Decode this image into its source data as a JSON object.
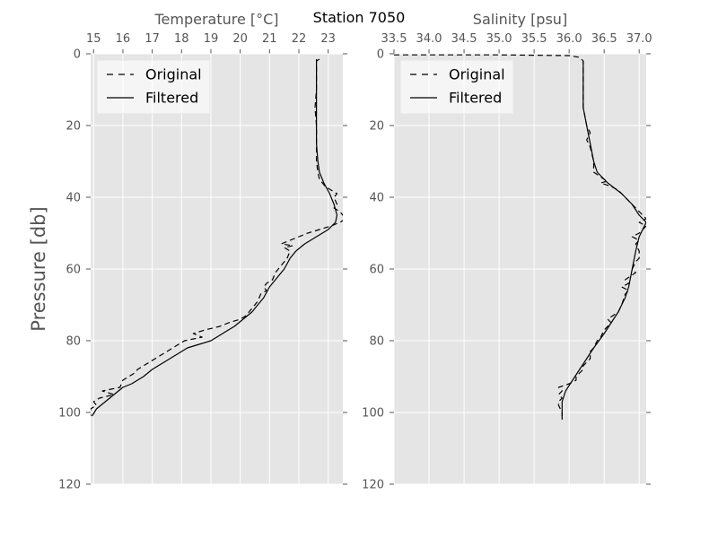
{
  "figure_title": "Station 7050",
  "y_axis_label": "Pressure [db]",
  "chart_data": [
    {
      "type": "line",
      "xlabel": "Temperature [°C]",
      "ylabel": "Pressure [db]",
      "xlim": [
        14.9,
        23.5
      ],
      "ylim": [
        120,
        0
      ],
      "x_ticks": [
        "15",
        "16",
        "17",
        "18",
        "19",
        "20",
        "21",
        "22",
        "23"
      ],
      "y_ticks": [
        "0",
        "20",
        "40",
        "60",
        "80",
        "100",
        "120"
      ],
      "grid": true,
      "legend_placement": "upper-left",
      "series": [
        {
          "name": "Original",
          "style": "dashed",
          "color": "#000000",
          "points": [
            [
              22.7,
              1.5
            ],
            [
              22.6,
              2
            ],
            [
              22.6,
              5
            ],
            [
              22.6,
              10
            ],
            [
              22.55,
              15
            ],
            [
              22.6,
              20
            ],
            [
              22.6,
              25
            ],
            [
              22.6,
              28
            ],
            [
              22.6,
              30
            ],
            [
              22.65,
              33
            ],
            [
              22.7,
              35
            ],
            [
              22.9,
              37
            ],
            [
              23.1,
              38
            ],
            [
              23.3,
              39
            ],
            [
              23.2,
              40
            ],
            [
              23.3,
              42
            ],
            [
              23.2,
              43
            ],
            [
              23.4,
              44
            ],
            [
              23.5,
              45
            ],
            [
              23.6,
              46
            ],
            [
              23.4,
              47
            ],
            [
              23.1,
              48
            ],
            [
              22.7,
              49
            ],
            [
              22.3,
              50
            ],
            [
              22.0,
              51
            ],
            [
              21.7,
              52
            ],
            [
              21.4,
              53
            ],
            [
              21.8,
              53.5
            ],
            [
              21.5,
              54
            ],
            [
              21.7,
              55
            ],
            [
              21.6,
              57
            ],
            [
              21.4,
              59
            ],
            [
              21.2,
              61
            ],
            [
              21.1,
              63
            ],
            [
              20.9,
              64
            ],
            [
              20.8,
              65
            ],
            [
              20.9,
              66
            ],
            [
              20.7,
              67
            ],
            [
              20.6,
              69
            ],
            [
              20.3,
              72
            ],
            [
              20.2,
              73
            ],
            [
              20.0,
              74
            ],
            [
              19.6,
              75
            ],
            [
              19.3,
              76
            ],
            [
              18.8,
              77
            ],
            [
              18.4,
              78
            ],
            [
              18.7,
              79
            ],
            [
              18.1,
              80
            ],
            [
              17.9,
              81
            ],
            [
              17.7,
              82
            ],
            [
              17.5,
              83
            ],
            [
              17.3,
              84
            ],
            [
              17.1,
              85
            ],
            [
              16.9,
              86
            ],
            [
              16.7,
              87
            ],
            [
              16.5,
              88
            ],
            [
              16.4,
              89
            ],
            [
              16.2,
              90
            ],
            [
              16.0,
              91
            ],
            [
              15.9,
              93
            ],
            [
              15.6,
              93.5
            ],
            [
              15.3,
              94
            ],
            [
              15.7,
              95
            ],
            [
              15.2,
              96
            ],
            [
              15.0,
              97
            ],
            [
              15.1,
              98
            ],
            [
              14.9,
              99
            ],
            [
              14.9,
              100
            ],
            [
              14.9,
              101
            ]
          ]
        },
        {
          "name": "Filtered",
          "style": "solid",
          "color": "#000000",
          "points": [
            [
              22.6,
              1.5
            ],
            [
              22.6,
              5
            ],
            [
              22.6,
              10
            ],
            [
              22.6,
              15
            ],
            [
              22.6,
              20
            ],
            [
              22.6,
              25
            ],
            [
              22.65,
              30
            ],
            [
              22.7,
              33
            ],
            [
              22.85,
              36
            ],
            [
              23.05,
              39
            ],
            [
              23.2,
              42
            ],
            [
              23.3,
              45
            ],
            [
              23.25,
              47
            ],
            [
              23.0,
              49
            ],
            [
              22.6,
              51
            ],
            [
              22.2,
              53
            ],
            [
              21.9,
              55
            ],
            [
              21.7,
              57
            ],
            [
              21.5,
              60
            ],
            [
              21.3,
              62
            ],
            [
              21.0,
              65
            ],
            [
              20.8,
              68
            ],
            [
              20.6,
              70
            ],
            [
              20.4,
              72
            ],
            [
              20.1,
              74
            ],
            [
              19.8,
              76
            ],
            [
              19.4,
              78
            ],
            [
              19.0,
              80
            ],
            [
              18.6,
              81
            ],
            [
              18.2,
              82
            ],
            [
              17.8,
              84
            ],
            [
              17.4,
              86
            ],
            [
              17.0,
              88
            ],
            [
              16.7,
              90
            ],
            [
              16.3,
              92
            ],
            [
              16.0,
              93
            ],
            [
              15.7,
              95
            ],
            [
              15.4,
              97
            ],
            [
              15.1,
              99
            ],
            [
              14.95,
              101
            ]
          ]
        }
      ]
    },
    {
      "type": "line",
      "xlabel": "Salinity [psu]",
      "ylabel": "",
      "xlim": [
        33.5,
        37.1
      ],
      "ylim": [
        120,
        0
      ],
      "x_ticks": [
        "33.5",
        "34.0",
        "34.5",
        "35.0",
        "35.5",
        "36.0",
        "36.5",
        "37.0"
      ],
      "y_ticks": [
        "0",
        "20",
        "40",
        "60",
        "80",
        "100",
        "120"
      ],
      "grid": true,
      "legend_placement": "upper-left",
      "series": [
        {
          "name": "Original",
          "style": "dashed",
          "color": "#000000",
          "points": [
            [
              33.5,
              0.3
            ],
            [
              35.0,
              0.3
            ],
            [
              36.0,
              0.5
            ],
            [
              36.15,
              1
            ],
            [
              36.2,
              2
            ],
            [
              36.2,
              5
            ],
            [
              36.2,
              10
            ],
            [
              36.2,
              15
            ],
            [
              36.25,
              20
            ],
            [
              36.3,
              22
            ],
            [
              36.25,
              24
            ],
            [
              36.3,
              26
            ],
            [
              36.35,
              30
            ],
            [
              36.35,
              33
            ],
            [
              36.5,
              35
            ],
            [
              36.55,
              35.5
            ],
            [
              36.45,
              36
            ],
            [
              36.6,
              37
            ],
            [
              36.7,
              38
            ],
            [
              36.75,
              39
            ],
            [
              36.8,
              40
            ],
            [
              36.9,
              42
            ],
            [
              37.0,
              44
            ],
            [
              37.05,
              45
            ],
            [
              37.1,
              46
            ],
            [
              37.0,
              47
            ],
            [
              37.1,
              48
            ],
            [
              37.0,
              50
            ],
            [
              36.9,
              51
            ],
            [
              37.0,
              52
            ],
            [
              36.95,
              53
            ],
            [
              37.0,
              55
            ],
            [
              37.0,
              57
            ],
            [
              36.95,
              58
            ],
            [
              36.9,
              60
            ],
            [
              36.95,
              61
            ],
            [
              36.8,
              63
            ],
            [
              36.85,
              64
            ],
            [
              36.75,
              65
            ],
            [
              36.85,
              66
            ],
            [
              36.8,
              67
            ],
            [
              36.75,
              70
            ],
            [
              36.7,
              72
            ],
            [
              36.55,
              74
            ],
            [
              36.6,
              75
            ],
            [
              36.5,
              77
            ],
            [
              36.45,
              79
            ],
            [
              36.4,
              80
            ],
            [
              36.35,
              82
            ],
            [
              36.3,
              83
            ],
            [
              36.3,
              85
            ],
            [
              36.25,
              86
            ],
            [
              36.2,
              87
            ],
            [
              36.2,
              88
            ],
            [
              36.15,
              89
            ],
            [
              36.1,
              90
            ],
            [
              36.1,
              91
            ],
            [
              36.0,
              92
            ],
            [
              35.85,
              93
            ],
            [
              35.9,
              94
            ],
            [
              35.85,
              95
            ],
            [
              35.9,
              96
            ],
            [
              35.85,
              97
            ],
            [
              35.85,
              98
            ],
            [
              35.9,
              100
            ],
            [
              35.9,
              101
            ]
          ]
        },
        {
          "name": "Filtered",
          "style": "solid",
          "color": "#000000",
          "points": [
            [
              36.2,
              2
            ],
            [
              36.2,
              5
            ],
            [
              36.2,
              10
            ],
            [
              36.2,
              15
            ],
            [
              36.25,
              20
            ],
            [
              36.3,
              25
            ],
            [
              36.35,
              30
            ],
            [
              36.4,
              33
            ],
            [
              36.55,
              36
            ],
            [
              36.75,
              39
            ],
            [
              36.9,
              42
            ],
            [
              37.0,
              45
            ],
            [
              37.1,
              47
            ],
            [
              37.05,
              49
            ],
            [
              37.0,
              51
            ],
            [
              36.95,
              55
            ],
            [
              36.9,
              60
            ],
            [
              36.85,
              65
            ],
            [
              36.8,
              68
            ],
            [
              36.7,
              72
            ],
            [
              36.6,
              75
            ],
            [
              36.5,
              78
            ],
            [
              36.35,
              82
            ],
            [
              36.25,
              85
            ],
            [
              36.15,
              88
            ],
            [
              36.05,
              91
            ],
            [
              35.95,
              94
            ],
            [
              35.9,
              97
            ],
            [
              35.9,
              100
            ],
            [
              35.9,
              102
            ]
          ]
        }
      ]
    }
  ]
}
